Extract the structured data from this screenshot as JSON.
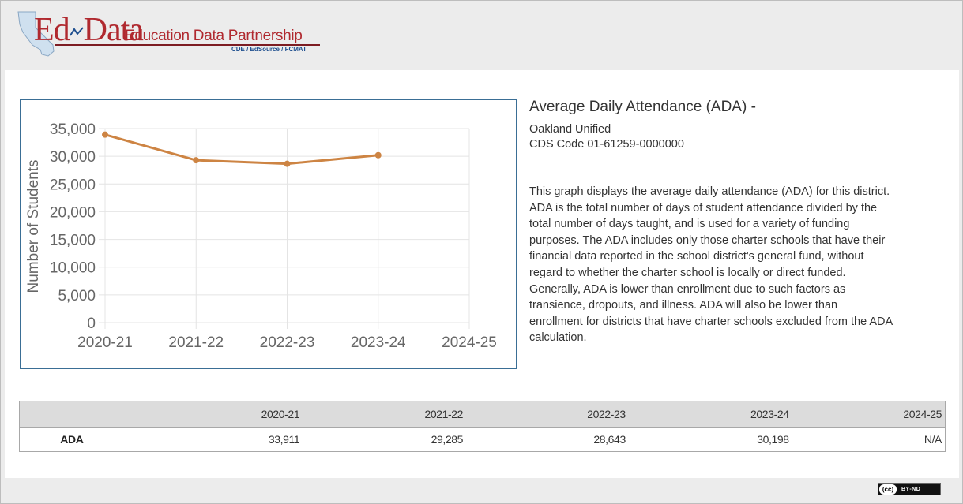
{
  "header": {
    "logo_brand": "Ed",
    "logo_brand2": "Data",
    "logo_tagline": "Education Data Partnership",
    "logo_partners": "CDE / EdSource / FCMAT"
  },
  "info": {
    "title": "Average Daily Attendance (ADA) -",
    "district": "Oakland Unified",
    "cds_code": "CDS Code 01-61259-0000000",
    "description": "This graph displays the average daily attendance (ADA) for this district. ADA is the total number of days of student attendance divided by the total number of days taught, and is used for a variety of funding purposes. The ADA includes only those charter schools that have their financial data reported in the school district's general fund, without regard to whether the charter school is locally or direct funded. Generally, ADA is lower than enrollment due to such factors as transience, dropouts, and illness. ADA will also be lower than enrollment for districts that have charter schools excluded from the ADA calculation."
  },
  "chart_data": {
    "type": "line",
    "title": "",
    "xlabel": "",
    "ylabel": "Number of Students",
    "categories": [
      "2020-21",
      "2021-22",
      "2022-23",
      "2023-24",
      "2024-25"
    ],
    "series": [
      {
        "values": [
          33911,
          29285,
          28643,
          30198,
          null
        ]
      }
    ],
    "ylim": [
      0,
      35000
    ],
    "yticks": [
      "0",
      "5,000",
      "10,000",
      "15,000",
      "20,000",
      "25,000",
      "30,000",
      "35,000"
    ],
    "ytick_values": [
      0,
      5000,
      10000,
      15000,
      20000,
      25000,
      30000,
      35000
    ],
    "grid": true,
    "line_color": "#cd8443"
  },
  "table": {
    "headers": [
      "",
      "2020-21",
      "2021-22",
      "2022-23",
      "2023-24",
      "2024-25"
    ],
    "rows": [
      {
        "label": "ADA",
        "values": [
          "33,911",
          "29,285",
          "28,643",
          "30,198",
          "N/A"
        ]
      }
    ]
  },
  "license": {
    "cc": "(cc)",
    "text": "BY-ND"
  }
}
